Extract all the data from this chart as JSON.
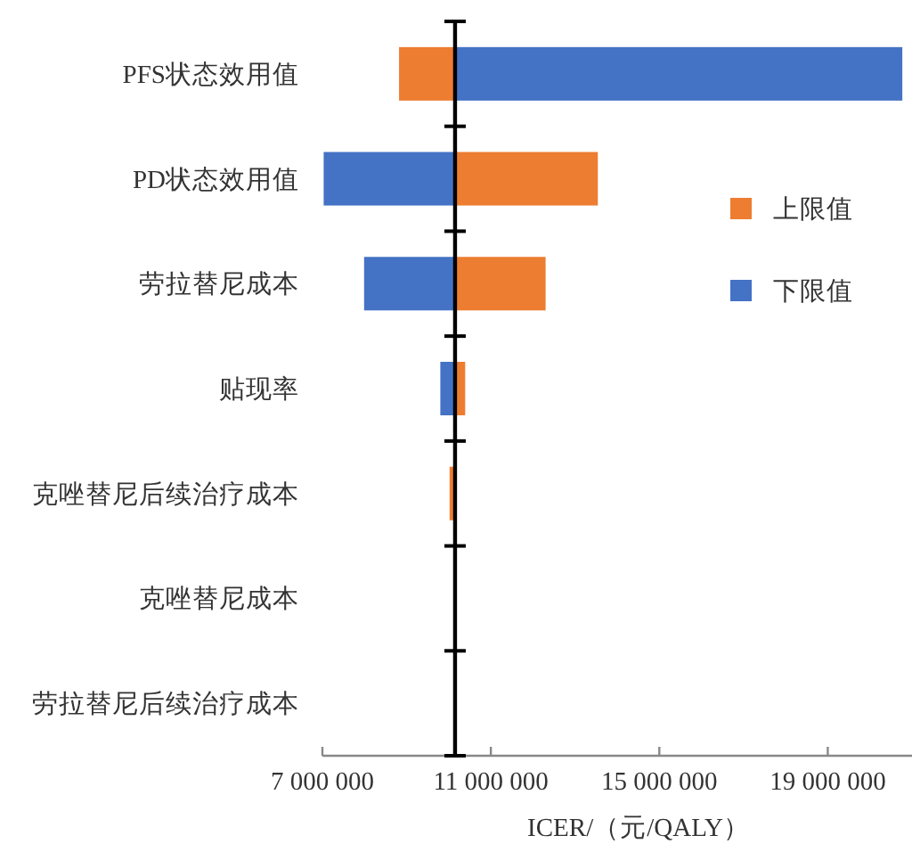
{
  "chart_data": {
    "type": "bar",
    "orientation": "horizontal",
    "xlabel": "ICER/（元/QALY）",
    "categories": [
      "PFS状态效用值",
      "PD状态效用值",
      "劳拉替尼成本",
      "贴现率",
      "克唑替尼后续治疗成本",
      "克唑替尼成本",
      "劳拉替尼后续治疗成本"
    ],
    "series": [
      {
        "name": "上限值",
        "color": "#ed7d31",
        "base": [
          10150000,
          10150000,
          10150000,
          10150000,
          10150000,
          null,
          null
        ],
        "values": [
          -1330000,
          3390000,
          2150000,
          240000,
          -130000,
          null,
          null
        ]
      },
      {
        "name": "下限值",
        "color": "#4472c4",
        "base": [
          10150000,
          10150000,
          10150000,
          10150000,
          null,
          null,
          null
        ],
        "values": [
          10620000,
          -3120000,
          -2160000,
          -350000,
          null,
          null,
          null
        ]
      }
    ],
    "ref_lines": [
      {
        "axis": "x",
        "value": 10150000,
        "color": "#000000"
      }
    ],
    "xlim": [
      7000000,
      21000000
    ],
    "xticks": [
      {
        "value": 7000000,
        "label": "7 000 000"
      },
      {
        "value": 11000000,
        "label": "11 000 000"
      },
      {
        "value": 15000000,
        "label": "15 000 000"
      },
      {
        "value": 19000000,
        "label": "19 000 000"
      }
    ],
    "legend": "right"
  }
}
